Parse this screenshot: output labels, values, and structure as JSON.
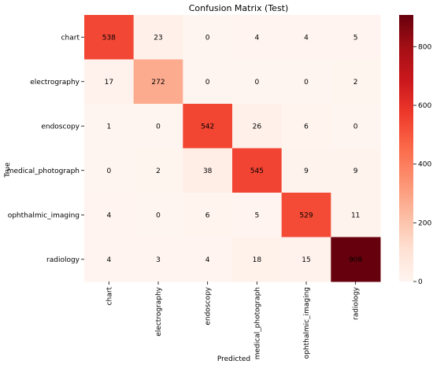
{
  "chart_data": {
    "type": "heatmap",
    "title": "Confusion Matrix (Test)",
    "xlabel": "Predicted",
    "ylabel": "True",
    "row_labels": [
      "chart",
      "electrography",
      "endoscopy",
      "medical_photograph",
      "ophthalmic_imaging",
      "radiology"
    ],
    "col_labels": [
      "chart",
      "electrography",
      "endoscopy",
      "medical_photograph",
      "ophthalmic_imaging",
      "radiology"
    ],
    "matrix": [
      [
        538,
        23,
        0,
        4,
        4,
        5
      ],
      [
        17,
        272,
        0,
        0,
        0,
        2
      ],
      [
        1,
        0,
        542,
        26,
        6,
        0
      ],
      [
        0,
        2,
        38,
        545,
        9,
        9
      ],
      [
        4,
        0,
        6,
        5,
        529,
        11
      ],
      [
        4,
        3,
        4,
        18,
        15,
        908
      ]
    ],
    "colormap": "Reds",
    "colorbar": {
      "range": [
        0,
        908
      ],
      "ticks": [
        0,
        200,
        400,
        600,
        800
      ]
    }
  }
}
